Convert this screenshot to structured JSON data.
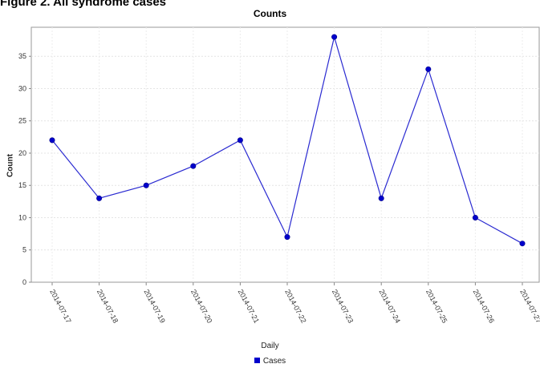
{
  "figure": {
    "caption": "Figure 2. All syndrome cases"
  },
  "chart_data": {
    "type": "line",
    "title": "Counts",
    "xlabel": "Daily",
    "ylabel": "Count",
    "categories": [
      "2014-07-17",
      "2014-07-18",
      "2014-07-19",
      "2014-07-20",
      "2014-07-21",
      "2014-07-22",
      "2014-07-23",
      "2014-07-24",
      "2014-07-25",
      "2014-07-26",
      "2014-07-27"
    ],
    "series": [
      {
        "name": "Cases",
        "values": [
          22,
          13,
          15,
          18,
          22,
          7,
          38,
          13,
          33,
          10,
          6
        ],
        "color": "#2a2ad1"
      }
    ],
    "ylim": [
      0,
      39.5
    ],
    "yticks": [
      0,
      5,
      10,
      15,
      20,
      25,
      30,
      35
    ],
    "grid": true,
    "legend": "bottom-center"
  }
}
